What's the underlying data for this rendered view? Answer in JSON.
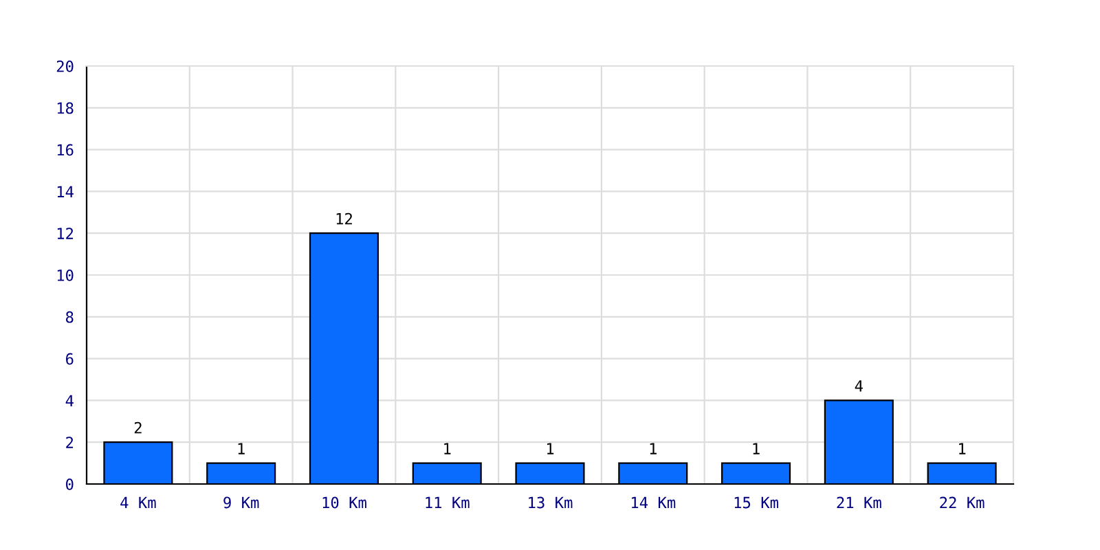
{
  "chart_data": {
    "type": "bar",
    "categories": [
      "4 Km",
      "9 Km",
      "10 Km",
      "11 Km",
      "13 Km",
      "14 Km",
      "15 Km",
      "21 Km",
      "22 Km"
    ],
    "values": [
      2,
      1,
      12,
      1,
      1,
      1,
      1,
      4,
      1
    ],
    "color": "#0a6cff",
    "ylim": [
      0,
      20
    ],
    "yticks": [
      0,
      2,
      4,
      6,
      8,
      10,
      12,
      14,
      16,
      18,
      20
    ],
    "grid": true,
    "data_labels": true
  }
}
